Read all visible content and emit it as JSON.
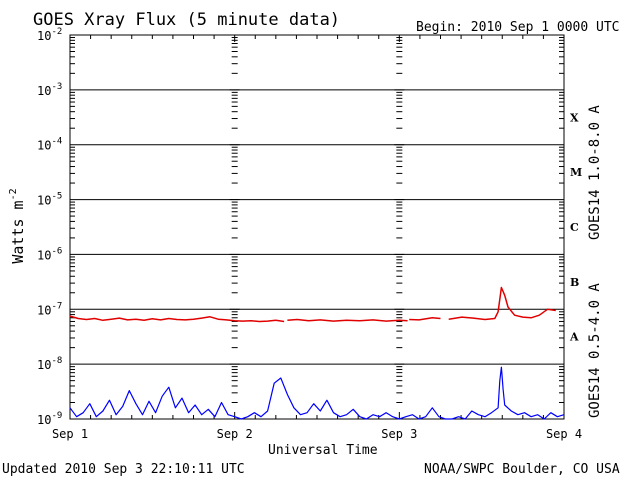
{
  "page": {
    "title": "GOES Xray Flux (5 minute data)",
    "begin_text": "Begin:  2010 Sep 1 0000 UTC",
    "updated_text": "Updated 2010 Sep  3 22:10:11 UTC",
    "credit": "NOAA/SWPC Boulder, CO USA"
  },
  "colors": {
    "long_channel": "#e00000",
    "short_channel": "#0000ff",
    "axes": "#000000",
    "background": "#ffffff"
  },
  "chart_data": {
    "type": "line",
    "title": "GOES Xray Flux (5 minute data)",
    "xlabel": "Universal Time",
    "ylabel": "Watts m",
    "ylabel_superscript": "-2",
    "y_scale": "log",
    "ylim": [
      1e-09,
      0.01
    ],
    "xlim_days": [
      0,
      3
    ],
    "x_ticks": [
      "Sep 1",
      "Sep 2",
      "Sep 3",
      "Sep 4"
    ],
    "y_ticks": [
      {
        "base": "10",
        "exp": "-2"
      },
      {
        "base": "10",
        "exp": "-3"
      },
      {
        "base": "10",
        "exp": "-4"
      },
      {
        "base": "10",
        "exp": "-5"
      },
      {
        "base": "10",
        "exp": "-6"
      },
      {
        "base": "10",
        "exp": "-7"
      },
      {
        "base": "10",
        "exp": "-8"
      },
      {
        "base": "10",
        "exp": "-9"
      }
    ],
    "flare_classes": [
      {
        "label": "X",
        "low": 0.0001,
        "high": 0.001
      },
      {
        "label": "M",
        "low": 1e-05,
        "high": 0.0001
      },
      {
        "label": "C",
        "low": 1e-06,
        "high": 1e-05
      },
      {
        "label": "B",
        "low": 1e-07,
        "high": 1e-06
      },
      {
        "label": "A",
        "low": 1e-08,
        "high": 1e-07
      }
    ],
    "grid": true,
    "legend": "right",
    "series": [
      {
        "name": "GOES14 1.0-8.0 A",
        "color": "#e00000",
        "segments": [
          {
            "x": [
              0.0,
              0.05,
              0.1,
              0.15,
              0.2,
              0.25,
              0.3,
              0.35,
              0.4,
              0.45,
              0.5,
              0.55,
              0.6,
              0.65,
              0.7,
              0.75,
              0.8,
              0.85,
              0.9,
              0.95,
              1.0,
              1.05,
              1.1,
              1.15,
              1.2,
              1.25,
              1.3
            ],
            "y": [
              7.5e-08,
              6.8e-08,
              6.5e-08,
              6.8e-08,
              6.3e-08,
              6.6e-08,
              6.9e-08,
              6.4e-08,
              6.6e-08,
              6.3e-08,
              6.7e-08,
              6.4e-08,
              6.8e-08,
              6.5e-08,
              6.4e-08,
              6.6e-08,
              6.9e-08,
              7.3e-08,
              6.6e-08,
              6.4e-08,
              6.2e-08,
              6.1e-08,
              6.2e-08,
              6e-08,
              6.1e-08,
              6.3e-08,
              6e-08
            ]
          },
          {
            "x": [
              1.32,
              1.38,
              1.45,
              1.52,
              1.6,
              1.68,
              1.76,
              1.84,
              1.92,
              2.0,
              2.05
            ],
            "y": [
              6.3e-08,
              6.5e-08,
              6.2e-08,
              6.4e-08,
              6.1e-08,
              6.3e-08,
              6.2e-08,
              6.4e-08,
              6.1e-08,
              6.3e-08,
              6.2e-08
            ]
          },
          {
            "x": [
              2.06,
              2.12,
              2.2,
              2.25
            ],
            "y": [
              6.5e-08,
              6.4e-08,
              7e-08,
              6.8e-08
            ]
          },
          {
            "x": [
              2.3,
              2.38,
              2.45,
              2.52,
              2.58,
              2.6,
              2.62,
              2.64,
              2.66,
              2.7,
              2.75,
              2.8,
              2.85,
              2.9,
              2.95
            ],
            "y": [
              6.6e-08,
              7.2e-08,
              6.9e-08,
              6.5e-08,
              6.8e-08,
              9e-08,
              2.5e-07,
              1.8e-07,
              1.1e-07,
              7.8e-08,
              7.2e-08,
              7e-08,
              7.8e-08,
              1e-07,
              9.5e-08
            ]
          }
        ]
      },
      {
        "name": "GOES14 0.5-4.0 A",
        "color": "#0000ff",
        "segments": [
          {
            "x": [
              0.0,
              0.04,
              0.08,
              0.12,
              0.16,
              0.2,
              0.24,
              0.28,
              0.32,
              0.36,
              0.4,
              0.44,
              0.48,
              0.52,
              0.56,
              0.6,
              0.64,
              0.68,
              0.72,
              0.76,
              0.8,
              0.84,
              0.88,
              0.92,
              0.96,
              1.0,
              1.04,
              1.08,
              1.12,
              1.16,
              1.2,
              1.24,
              1.28,
              1.32,
              1.36,
              1.4,
              1.44,
              1.48,
              1.52,
              1.56,
              1.6,
              1.64,
              1.68,
              1.72,
              1.76,
              1.8,
              1.84,
              1.88,
              1.92,
              1.96,
              2.0,
              2.04,
              2.08,
              2.12,
              2.16,
              2.2,
              2.24,
              2.28,
              2.32,
              2.36,
              2.4,
              2.44,
              2.48,
              2.52,
              2.56,
              2.6,
              2.61,
              2.62,
              2.63,
              2.64,
              2.68,
              2.72,
              2.76,
              2.8,
              2.84,
              2.88,
              2.92,
              2.96,
              3.0
            ],
            "y": [
              1.6e-09,
              1.1e-09,
              1.3e-09,
              1.9e-09,
              1.1e-09,
              1.4e-09,
              2.2e-09,
              1.2e-09,
              1.7e-09,
              3.3e-09,
              1.9e-09,
              1.2e-09,
              2.1e-09,
              1.3e-09,
              2.6e-09,
              3.8e-09,
              1.6e-09,
              2.4e-09,
              1.3e-09,
              1.8e-09,
              1.2e-09,
              1.5e-09,
              1.1e-09,
              2e-09,
              1.2e-09,
              1.1e-09,
              1e-09,
              1.1e-09,
              1.3e-09,
              1.1e-09,
              1.4e-09,
              4.5e-09,
              5.6e-09,
              2.8e-09,
              1.6e-09,
              1.2e-09,
              1.3e-09,
              1.9e-09,
              1.4e-09,
              2.2e-09,
              1.3e-09,
              1.1e-09,
              1.2e-09,
              1.5e-09,
              1.1e-09,
              1e-09,
              1.2e-09,
              1.1e-09,
              1.3e-09,
              1.1e-09,
              1e-09,
              1.1e-09,
              1.2e-09,
              1e-09,
              1.1e-09,
              1.6e-09,
              1.1e-09,
              1e-09,
              1e-09,
              1.1e-09,
              1e-09,
              1.4e-09,
              1.2e-09,
              1.1e-09,
              1.3e-09,
              1.6e-09,
              5e-09,
              8.8e-09,
              3.5e-09,
              1.8e-09,
              1.4e-09,
              1.2e-09,
              1.3e-09,
              1.1e-09,
              1.2e-09,
              1e-09,
              1.3e-09,
              1.1e-09,
              1.2e-09
            ]
          }
        ]
      }
    ]
  }
}
